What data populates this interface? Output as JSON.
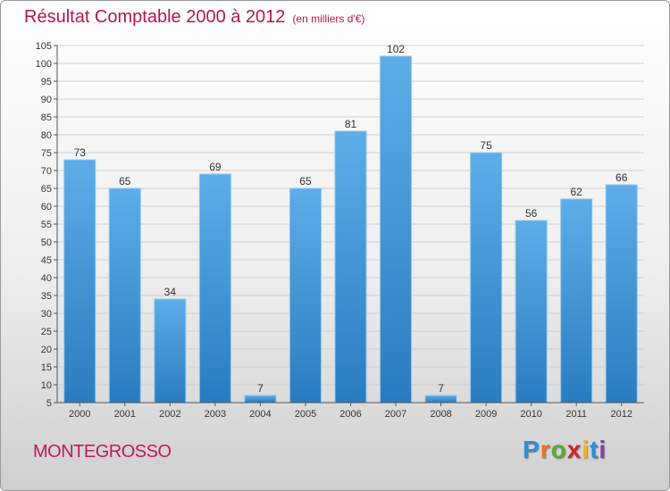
{
  "header": {
    "title": "Résultat Comptable 2000 à 2012",
    "subtitle": "(en milliers d'€)"
  },
  "footer": {
    "place": "MONTEGROSSO",
    "logo": "Proxiti"
  },
  "colors": {
    "bar_top": "#5dade8",
    "bar_bottom": "#2a7cc0",
    "grid": "#cfcfcf",
    "title": "#b5174a"
  },
  "chart_data": {
    "type": "bar",
    "title": "Résultat Comptable 2000 à 2012",
    "categories": [
      "2000",
      "2001",
      "2002",
      "2003",
      "2004",
      "2005",
      "2006",
      "2007",
      "2008",
      "2009",
      "2010",
      "2011",
      "2012"
    ],
    "values": [
      73,
      65,
      34,
      69,
      7,
      65,
      81,
      102,
      7,
      75,
      56,
      62,
      66
    ],
    "ylim": [
      5,
      105
    ],
    "yticks": [
      5,
      10,
      15,
      20,
      25,
      30,
      35,
      40,
      45,
      50,
      55,
      60,
      65,
      70,
      75,
      80,
      85,
      90,
      95,
      100,
      105
    ],
    "grid": true,
    "legend": "none",
    "xlabel": "",
    "ylabel": ""
  }
}
